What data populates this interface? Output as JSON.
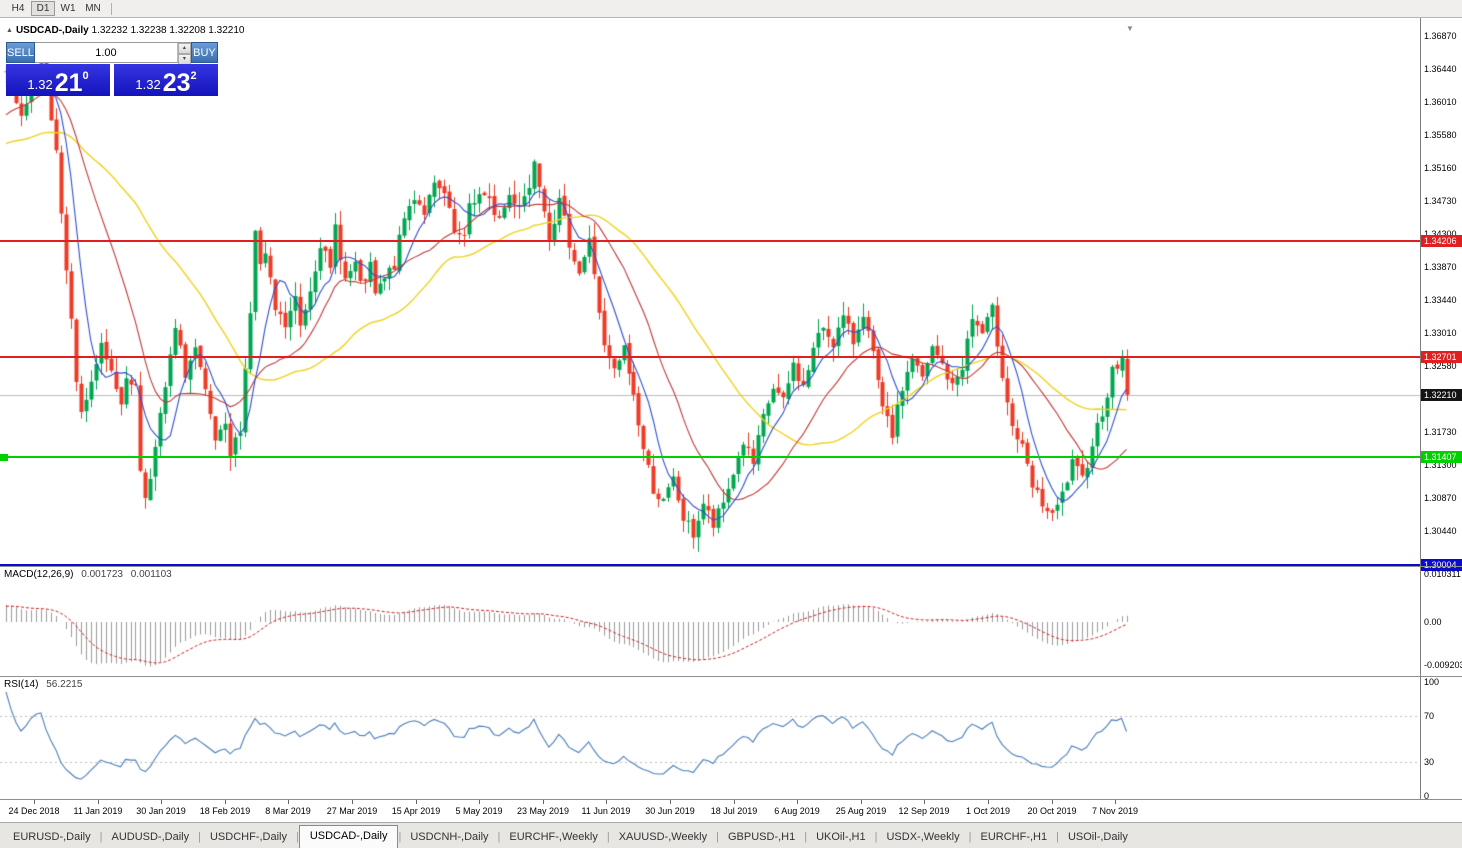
{
  "toolbar": {
    "timeframes": [
      "H4",
      "D1",
      "W1",
      "MN"
    ],
    "active_timeframe": "D1"
  },
  "icons": {
    "one_click_toggle": "▲",
    "chart_shift": "▼",
    "spinner_up": "▴",
    "spinner_down": "▾"
  },
  "chart_header": {
    "symbol": "USDCAD-,Daily",
    "ohlc_text": "1.32232 1.32238 1.32208 1.32210"
  },
  "trade_panel": {
    "sell_label": "SELL",
    "buy_label": "BUY",
    "volume": "1.00",
    "sell_price": {
      "prefix": "1.32",
      "big": "21",
      "sup": "0"
    },
    "buy_price": {
      "prefix": "1.32",
      "big": "23",
      "sup": "2"
    }
  },
  "price_axis": {
    "ticks": [
      "1.36870",
      "1.36440",
      "1.36010",
      "1.35580",
      "1.35160",
      "1.34730",
      "1.34300",
      "1.33870",
      "1.33440",
      "1.33010",
      "1.32580",
      "1.31730",
      "1.31300",
      "1.30870",
      "1.30440"
    ]
  },
  "levels": [
    {
      "label": "1.34206",
      "price": 1.34206,
      "color": "#e02020",
      "thickness": 2
    },
    {
      "label": "1.32701",
      "price": 1.32701,
      "color": "#e02020",
      "thickness": 2
    },
    {
      "label": "1.31407",
      "price": 1.31407,
      "color": "#00cf00",
      "thickness": 2
    },
    {
      "label": "1.30004",
      "price": 1.30004,
      "color": "#0b0bd0",
      "thickness": 3
    }
  ],
  "current_price": {
    "label": "1.32210",
    "price": 1.3221,
    "tag_bg": "#141414",
    "line_color": "#bdbdbd"
  },
  "macd_panel": {
    "title": "MACD(12,26,9)",
    "value_main": "0.001723",
    "value_signal": "0.001103",
    "axis": [
      "0.010311",
      "0.00",
      "-0.009203"
    ]
  },
  "rsi_panel": {
    "title": "RSI(14)",
    "value": "56.2215",
    "axis": [
      "100",
      "70",
      "30",
      "0"
    ],
    "guide_levels": [
      70,
      30
    ]
  },
  "date_axis": [
    "24 Dec 2018",
    "11 Jan 2019",
    "30 Jan 2019",
    "18 Feb 2019",
    "8 Mar 2019",
    "27 Mar 2019",
    "15 Apr 2019",
    "5 May 2019",
    "23 May 2019",
    "11 Jun 2019",
    "30 Jun 2019",
    "18 Jul 2019",
    "6 Aug 2019",
    "25 Aug 2019",
    "12 Sep 2019",
    "1 Oct 2019",
    "20 Oct 2019",
    "7 Nov 2019"
  ],
  "tabs": {
    "items": [
      "EURUSD-,Daily",
      "AUDUSD-,Daily",
      "USDCHF-,Daily",
      "USDCAD-,Daily",
      "USDCNH-,Daily",
      "EURCHF-,Weekly",
      "XAUUSD-,Weekly",
      "GBPUSD-,H1",
      "UKOil-,H1",
      "USDX-,Weekly",
      "EURCHF-,H1",
      "USOil-,Daily"
    ],
    "active_index": 3
  },
  "chart_data": {
    "type": "candlestick",
    "symbol": "USDCAD",
    "period": "Daily",
    "visible_date_range": [
      "24 Dec 2018",
      "7 Nov 2019"
    ],
    "price_axis_range": [
      1.2985,
      1.37
    ],
    "candle_count": 226,
    "last_close": 1.3221,
    "levels": {
      "resistance": [
        1.34206,
        1.32701
      ],
      "support": [
        1.31407
      ],
      "lower_band": 1.30004
    },
    "anchors": [
      [
        0,
        1.364
      ],
      [
        3,
        1.3575
      ],
      [
        7,
        1.366
      ],
      [
        10,
        1.354
      ],
      [
        12,
        1.339
      ],
      [
        14,
        1.324
      ],
      [
        15,
        1.32
      ],
      [
        17,
        1.323
      ],
      [
        19,
        1.3285
      ],
      [
        21,
        1.3255
      ],
      [
        23,
        1.3215
      ],
      [
        24,
        1.3235
      ],
      [
        26,
        1.324
      ],
      [
        27,
        1.312
      ],
      [
        28,
        1.309
      ],
      [
        30,
        1.315
      ],
      [
        32,
        1.323
      ],
      [
        34,
        1.3305
      ],
      [
        36,
        1.325
      ],
      [
        38,
        1.328
      ],
      [
        40,
        1.322
      ],
      [
        42,
        1.316
      ],
      [
        44,
        1.3175
      ],
      [
        45,
        1.314
      ],
      [
        47,
        1.318
      ],
      [
        49,
        1.333
      ],
      [
        50,
        1.343
      ],
      [
        51,
        1.339
      ],
      [
        52,
        1.34
      ],
      [
        54,
        1.333
      ],
      [
        56,
        1.331
      ],
      [
        58,
        1.3345
      ],
      [
        59,
        1.331
      ],
      [
        61,
        1.336
      ],
      [
        63,
        1.342
      ],
      [
        65,
        1.338
      ],
      [
        66,
        1.344
      ],
      [
        68,
        1.337
      ],
      [
        70,
        1.339
      ],
      [
        71,
        1.336
      ],
      [
        73,
        1.3385
      ],
      [
        74,
        1.335
      ],
      [
        76,
        1.337
      ],
      [
        78,
        1.339
      ],
      [
        80,
        1.345
      ],
      [
        82,
        1.348
      ],
      [
        84,
        1.346
      ],
      [
        86,
        1.349
      ],
      [
        88,
        1.348
      ],
      [
        90,
        1.343
      ],
      [
        92,
        1.342
      ],
      [
        93,
        1.347
      ],
      [
        95,
        1.348
      ],
      [
        97,
        1.347
      ],
      [
        99,
        1.345
      ],
      [
        101,
        1.348
      ],
      [
        103,
        1.347
      ],
      [
        105,
        1.349
      ],
      [
        106,
        1.353
      ],
      [
        107,
        1.35
      ],
      [
        109,
        1.343
      ],
      [
        111,
        1.347
      ],
      [
        113,
        1.342
      ],
      [
        115,
        1.338
      ],
      [
        117,
        1.342
      ],
      [
        118,
        1.338
      ],
      [
        120,
        1.328
      ],
      [
        122,
        1.325
      ],
      [
        124,
        1.328
      ],
      [
        126,
        1.322
      ],
      [
        128,
        1.315
      ],
      [
        130,
        1.31
      ],
      [
        132,
        1.308
      ],
      [
        134,
        1.311
      ],
      [
        136,
        1.306
      ],
      [
        138,
        1.304
      ],
      [
        140,
        1.308
      ],
      [
        142,
        1.305
      ],
      [
        144,
        1.308
      ],
      [
        146,
        1.312
      ],
      [
        148,
        1.316
      ],
      [
        150,
        1.313
      ],
      [
        152,
        1.319
      ],
      [
        154,
        1.323
      ],
      [
        156,
        1.321
      ],
      [
        158,
        1.326
      ],
      [
        160,
        1.323
      ],
      [
        162,
        1.328
      ],
      [
        164,
        1.331
      ],
      [
        166,
        1.329
      ],
      [
        168,
        1.332
      ],
      [
        170,
        1.329
      ],
      [
        172,
        1.333
      ],
      [
        174,
        1.327
      ],
      [
        176,
        1.32
      ],
      [
        178,
        1.317
      ],
      [
        180,
        1.323
      ],
      [
        182,
        1.327
      ],
      [
        184,
        1.324
      ],
      [
        186,
        1.328
      ],
      [
        188,
        1.326
      ],
      [
        190,
        1.323
      ],
      [
        192,
        1.326
      ],
      [
        194,
        1.332
      ],
      [
        196,
        1.33
      ],
      [
        198,
        1.333
      ],
      [
        200,
        1.325
      ],
      [
        202,
        1.318
      ],
      [
        204,
        1.315
      ],
      [
        206,
        1.31
      ],
      [
        208,
        1.308
      ],
      [
        210,
        1.306
      ],
      [
        212,
        1.309
      ],
      [
        214,
        1.313
      ],
      [
        216,
        1.311
      ],
      [
        218,
        1.316
      ],
      [
        220,
        1.32
      ],
      [
        222,
        1.325
      ],
      [
        224,
        1.3268
      ],
      [
        225,
        1.3221
      ]
    ],
    "colors": {
      "up": "#00a651",
      "down": "#ee3b27",
      "ma_fast": "#2f4fd0",
      "ma_mid": "#c03a3a",
      "ma_slow": "#f0d21c",
      "macd_hist": "#9c9c9c",
      "macd_signal": "#cc2222",
      "rsi": "#4a7ebb"
    }
  }
}
